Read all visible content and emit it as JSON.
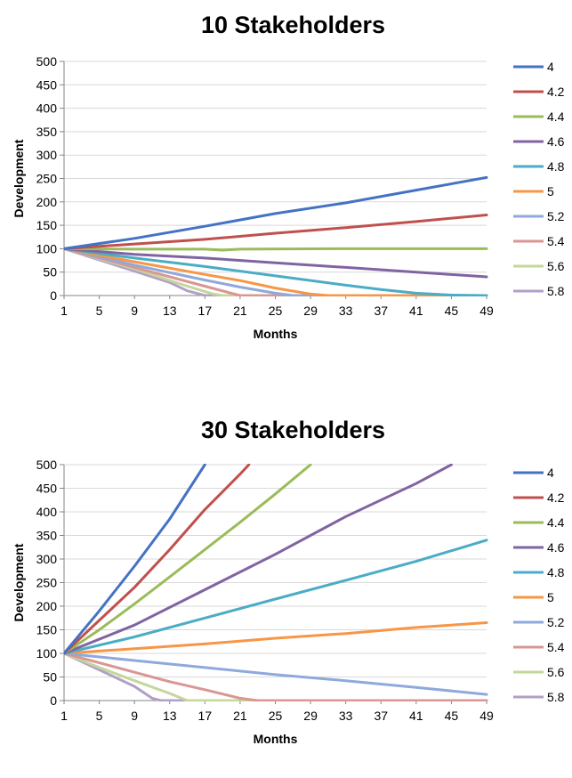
{
  "chart_data": [
    {
      "type": "line",
      "title": "10 Stakeholders",
      "xlabel": "Months",
      "ylabel": "Development",
      "xlim": [
        1,
        49
      ],
      "ylim": [
        0,
        500
      ],
      "x_ticks": [
        "1",
        "5",
        "9",
        "13",
        "17",
        "21",
        "25",
        "29",
        "33",
        "37",
        "41",
        "45",
        "49"
      ],
      "y_ticks": [
        "0",
        "50",
        "100",
        "150",
        "200",
        "250",
        "300",
        "350",
        "400",
        "450",
        "500"
      ],
      "grid": "horizontal",
      "legend_position": "right",
      "series": [
        {
          "name": "4",
          "color": "#4472C4",
          "points": [
            [
              1,
              100
            ],
            [
              9,
              122
            ],
            [
              17,
              148
            ],
            [
              25,
              175
            ],
            [
              33,
              198
            ],
            [
              41,
              225
            ],
            [
              49,
              252
            ]
          ]
        },
        {
          "name": "4.2",
          "color": "#C0504D",
          "points": [
            [
              1,
              100
            ],
            [
              9,
              110
            ],
            [
              17,
              120
            ],
            [
              25,
              133
            ],
            [
              33,
              145
            ],
            [
              41,
              158
            ],
            [
              49,
              172
            ]
          ]
        },
        {
          "name": "4.4",
          "color": "#9BBB59",
          "points": [
            [
              1,
              100
            ],
            [
              9,
              99
            ],
            [
              13,
              99
            ],
            [
              17,
              99
            ],
            [
              19,
              97
            ],
            [
              21,
              99
            ],
            [
              33,
              100
            ],
            [
              45,
              100
            ],
            [
              49,
              100
            ]
          ]
        },
        {
          "name": "4.6",
          "color": "#8064A2",
          "points": [
            [
              1,
              100
            ],
            [
              9,
              88
            ],
            [
              17,
              80
            ],
            [
              25,
              70
            ],
            [
              33,
              60
            ],
            [
              41,
              50
            ],
            [
              49,
              40
            ]
          ]
        },
        {
          "name": "4.8",
          "color": "#4BACC6",
          "points": [
            [
              1,
              100
            ],
            [
              9,
              80
            ],
            [
              17,
              62
            ],
            [
              25,
              42
            ],
            [
              33,
              22
            ],
            [
              37,
              13
            ],
            [
              41,
              5
            ],
            [
              45,
              1
            ],
            [
              49,
              0
            ]
          ]
        },
        {
          "name": "5",
          "color": "#F79646",
          "points": [
            [
              1,
              100
            ],
            [
              9,
              72
            ],
            [
              17,
              45
            ],
            [
              21,
              32
            ],
            [
              25,
              16
            ],
            [
              29,
              3
            ],
            [
              31,
              0
            ],
            [
              49,
              0
            ]
          ]
        },
        {
          "name": "5.2",
          "color": "#8EA9DB",
          "points": [
            [
              1,
              100
            ],
            [
              9,
              65
            ],
            [
              17,
              33
            ],
            [
              21,
              18
            ],
            [
              25,
              5
            ],
            [
              27,
              0
            ],
            [
              49,
              0
            ]
          ]
        },
        {
          "name": "5.4",
          "color": "#DA9694",
          "points": [
            [
              1,
              100
            ],
            [
              9,
              60
            ],
            [
              17,
              20
            ],
            [
              20,
              5
            ],
            [
              21,
              0
            ],
            [
              49,
              0
            ]
          ]
        },
        {
          "name": "5.6",
          "color": "#C4D79B",
          "points": [
            [
              1,
              100
            ],
            [
              9,
              57
            ],
            [
              15,
              20
            ],
            [
              18,
              3
            ],
            [
              19,
              0
            ],
            [
              49,
              0
            ]
          ]
        },
        {
          "name": "5.8",
          "color": "#B1A0C7",
          "points": [
            [
              1,
              100
            ],
            [
              9,
              52
            ],
            [
              13,
              28
            ],
            [
              15,
              10
            ],
            [
              17,
              0
            ],
            [
              49,
              0
            ]
          ]
        }
      ]
    },
    {
      "type": "line",
      "title": "30 Stakeholders",
      "xlabel": "Months",
      "ylabel": "Development",
      "xlim": [
        1,
        49
      ],
      "ylim": [
        0,
        500
      ],
      "x_ticks": [
        "1",
        "5",
        "9",
        "13",
        "17",
        "21",
        "25",
        "29",
        "33",
        "37",
        "41",
        "45",
        "49"
      ],
      "y_ticks": [
        "0",
        "50",
        "100",
        "150",
        "200",
        "250",
        "300",
        "350",
        "400",
        "450",
        "500"
      ],
      "grid": "horizontal",
      "legend_position": "right",
      "series": [
        {
          "name": "4",
          "color": "#4472C4",
          "points": [
            [
              1,
              100
            ],
            [
              5,
              190
            ],
            [
              9,
              285
            ],
            [
              13,
              385
            ],
            [
              17,
              500
            ]
          ]
        },
        {
          "name": "4.2",
          "color": "#C0504D",
          "points": [
            [
              1,
              100
            ],
            [
              5,
              170
            ],
            [
              9,
              240
            ],
            [
              13,
              320
            ],
            [
              17,
              405
            ],
            [
              21,
              480
            ],
            [
              22,
              500
            ]
          ]
        },
        {
          "name": "4.4",
          "color": "#9BBB59",
          "points": [
            [
              1,
              100
            ],
            [
              5,
              150
            ],
            [
              9,
              205
            ],
            [
              13,
              262
            ],
            [
              17,
              320
            ],
            [
              21,
              378
            ],
            [
              25,
              438
            ],
            [
              29,
              500
            ]
          ]
        },
        {
          "name": "4.6",
          "color": "#8064A2",
          "points": [
            [
              1,
              100
            ],
            [
              9,
              160
            ],
            [
              17,
              235
            ],
            [
              25,
              310
            ],
            [
              33,
              390
            ],
            [
              41,
              460
            ],
            [
              45,
              500
            ]
          ]
        },
        {
          "name": "4.8",
          "color": "#4BACC6",
          "points": [
            [
              1,
              100
            ],
            [
              9,
              135
            ],
            [
              17,
              175
            ],
            [
              25,
              215
            ],
            [
              33,
              255
            ],
            [
              41,
              295
            ],
            [
              49,
              340
            ]
          ]
        },
        {
          "name": "5",
          "color": "#F79646",
          "points": [
            [
              1,
              100
            ],
            [
              9,
              110
            ],
            [
              17,
              120
            ],
            [
              25,
              132
            ],
            [
              33,
              142
            ],
            [
              41,
              155
            ],
            [
              49,
              165
            ]
          ]
        },
        {
          "name": "5.2",
          "color": "#8EA9DB",
          "points": [
            [
              1,
              100
            ],
            [
              9,
              85
            ],
            [
              17,
              70
            ],
            [
              25,
              55
            ],
            [
              33,
              42
            ],
            [
              41,
              28
            ],
            [
              49,
              13
            ]
          ]
        },
        {
          "name": "5.4",
          "color": "#DA9694",
          "points": [
            [
              1,
              100
            ],
            [
              5,
              80
            ],
            [
              9,
              60
            ],
            [
              13,
              40
            ],
            [
              17,
              23
            ],
            [
              21,
              5
            ],
            [
              23,
              0
            ],
            [
              49,
              0
            ]
          ]
        },
        {
          "name": "5.6",
          "color": "#C4D79B",
          "points": [
            [
              1,
              100
            ],
            [
              5,
              70
            ],
            [
              9,
              42
            ],
            [
              13,
              15
            ],
            [
              15,
              0
            ],
            [
              49,
              0
            ]
          ]
        },
        {
          "name": "5.8",
          "color": "#B1A0C7",
          "points": [
            [
              1,
              100
            ],
            [
              5,
              65
            ],
            [
              9,
              30
            ],
            [
              11,
              5
            ],
            [
              12,
              0
            ],
            [
              49,
              0
            ]
          ]
        }
      ]
    }
  ]
}
